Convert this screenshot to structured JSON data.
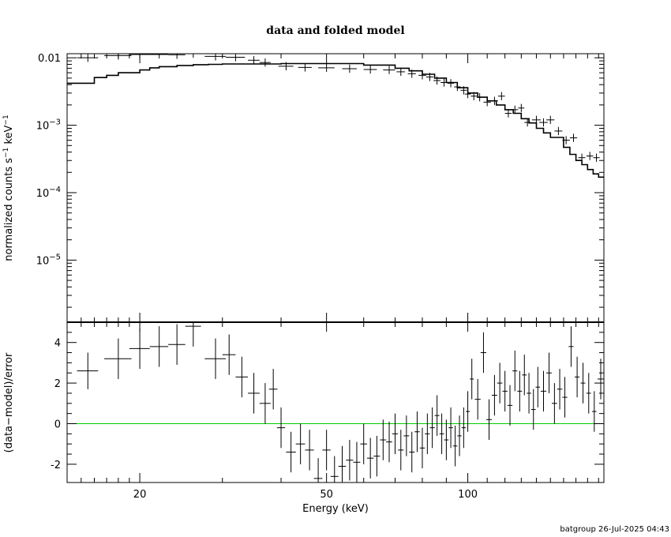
{
  "chart_data": [
    {
      "type": "line",
      "panel": "spectrum",
      "title": "data and folded model",
      "ylabel_parts": [
        "normalized counts s",
        "−1",
        " keV",
        "−1"
      ],
      "yscale": "log",
      "xscale": "log",
      "xlim": [
        14,
        195
      ],
      "ylim": [
        1.2e-06,
        0.0115
      ],
      "ytick_labels": [
        {
          "value": 0.01,
          "label": "0.01"
        },
        {
          "value": 0.001,
          "base": "10",
          "exp": "−3"
        },
        {
          "value": 0.0001,
          "base": "10",
          "exp": "−4"
        },
        {
          "value": 1e-05,
          "base": "10",
          "exp": "−5"
        }
      ],
      "data": {
        "x": [
          15.5,
          18,
          20,
          22,
          24,
          26,
          29,
          32,
          35,
          37,
          41,
          45,
          50,
          56,
          62,
          68,
          72,
          76,
          80,
          83,
          86,
          89,
          92,
          95,
          98,
          100,
          103,
          106,
          110,
          114,
          118,
          122,
          126,
          130,
          134,
          140,
          145,
          150,
          156,
          162,
          168,
          175,
          182,
          188
        ],
        "y": [
          0.01,
          0.0108,
          0.0112,
          0.0112,
          0.0111,
          0.0115,
          0.0105,
          0.0102,
          0.0092,
          0.0085,
          0.0075,
          0.0072,
          0.0071,
          0.0069,
          0.0067,
          0.0066,
          0.0062,
          0.0058,
          0.0055,
          0.0052,
          0.0046,
          0.0043,
          0.0042,
          0.0037,
          0.0033,
          0.0029,
          0.0027,
          0.0026,
          0.0022,
          0.0023,
          0.0027,
          0.0015,
          0.0017,
          0.0018,
          0.0011,
          0.0012,
          0.0011,
          0.0012,
          0.00082,
          0.0006,
          0.00065,
          0.00033,
          0.00035,
          0.00033
        ],
        "xerr": [
          0.8,
          1.2,
          1,
          1,
          1,
          1,
          1.5,
          1.5,
          1,
          1,
          1.5,
          1.5,
          2,
          2,
          2,
          2,
          1.5,
          1.5,
          1.5,
          1.5,
          1.5,
          1.5,
          1.5,
          1.5,
          1.5,
          1.5,
          1.5,
          1.5,
          2,
          2,
          2,
          2,
          2,
          2,
          2,
          3,
          3,
          3,
          3,
          3,
          3,
          3,
          3,
          3
        ],
        "yerr_factor": 1.15
      },
      "model": {
        "x": [
          14,
          16,
          17,
          18,
          20,
          21,
          22,
          24,
          26,
          28,
          30,
          34,
          40,
          50,
          60,
          70,
          75,
          80,
          85,
          90,
          95,
          100,
          105,
          110,
          115,
          120,
          125,
          130,
          135,
          140,
          145,
          150,
          160,
          165,
          170,
          175,
          180,
          185,
          190,
          195
        ],
        "y": [
          0.0042,
          0.0051,
          0.0055,
          0.006,
          0.0066,
          0.0071,
          0.0074,
          0.0077,
          0.0079,
          0.008,
          0.0081,
          0.0081,
          0.0082,
          0.0082,
          0.0078,
          0.007,
          0.0064,
          0.0057,
          0.005,
          0.0043,
          0.0036,
          0.003,
          0.0026,
          0.0023,
          0.002,
          0.0017,
          0.0015,
          0.00125,
          0.00108,
          0.0009,
          0.00077,
          0.00066,
          0.00047,
          0.00037,
          0.0003,
          0.00026,
          0.00022,
          0.00019,
          0.00017,
          0.00016
        ]
      }
    },
    {
      "type": "scatter",
      "panel": "residuals",
      "ylabel": "(data−model)/error",
      "xlabel": "Energy (keV)",
      "xscale": "log",
      "xlim": [
        14,
        195
      ],
      "ylim": [
        -2.9,
        5.0
      ],
      "yticks": [
        -2,
        0,
        2,
        4
      ],
      "xticks": [
        20,
        50,
        100
      ],
      "reference_line": {
        "y": 0,
        "color": "#00cc00"
      },
      "data": {
        "x": [
          15.5,
          18,
          20,
          22,
          24,
          26,
          29,
          31,
          33,
          35,
          37,
          38.5,
          40,
          42,
          44,
          46,
          48,
          50,
          52,
          54,
          56,
          58,
          60,
          62,
          64,
          66,
          68,
          70,
          72,
          74,
          76,
          78,
          80,
          82,
          84,
          86,
          88,
          90,
          92,
          94,
          96,
          98,
          100,
          102,
          105,
          108,
          111,
          114,
          117,
          120,
          123,
          126,
          129,
          132,
          135,
          138,
          141,
          145,
          149,
          153,
          157,
          161,
          166,
          171,
          176,
          181,
          186,
          192
        ],
        "y": [
          2.6,
          3.2,
          3.7,
          3.8,
          3.9,
          4.8,
          3.2,
          3.4,
          2.3,
          1.5,
          1.0,
          1.7,
          -0.2,
          -1.4,
          -1.0,
          -1.3,
          -2.7,
          -1.3,
          -2.6,
          -2.1,
          -1.8,
          -1.9,
          -1.0,
          -1.7,
          -1.6,
          -0.8,
          -0.9,
          -0.5,
          -1.3,
          -0.6,
          -1.4,
          -0.4,
          -1.2,
          -0.5,
          -0.2,
          0.4,
          -0.5,
          -0.8,
          -0.2,
          -1.1,
          -0.6,
          -0.2,
          0.6,
          2.2,
          1.2,
          3.5,
          0.2,
          1.4,
          2.0,
          1.6,
          0.9,
          2.6,
          1.6,
          2.4,
          1.5,
          0.7,
          1.8,
          1.6,
          2.5,
          1.0,
          1.7,
          1.3,
          3.8,
          2.3,
          2.0,
          1.5,
          0.6,
          2.2
        ],
        "xerr": [
          0.8,
          1.2,
          1,
          1,
          1,
          1,
          1.5,
          1,
          1,
          1,
          1,
          0.8,
          0.8,
          1,
          1,
          1,
          1,
          1,
          1,
          1,
          1,
          1,
          1,
          1,
          1,
          1,
          1,
          1,
          1,
          1,
          1,
          1,
          1,
          1,
          1,
          1,
          1,
          1,
          1,
          1,
          1,
          1,
          1,
          1,
          1.5,
          1.5,
          1.5,
          1.5,
          1.5,
          1.5,
          1.5,
          1.5,
          1.5,
          1.5,
          1.5,
          1.5,
          1.5,
          2,
          2,
          2,
          2,
          2,
          2,
          2,
          2,
          2,
          2,
          3
        ],
        "yerr": [
          0.9,
          1,
          1,
          1,
          1,
          1,
          1,
          1,
          1,
          1,
          1,
          1,
          1,
          1,
          1,
          1,
          1,
          1,
          1,
          1,
          1,
          1,
          1,
          1,
          1,
          1,
          1,
          1,
          1,
          1,
          1,
          1,
          1,
          1,
          1,
          1,
          1,
          1,
          1,
          1,
          1,
          1,
          1,
          1,
          1,
          1,
          1,
          1,
          1,
          1,
          1,
          1,
          1,
          1,
          1,
          1,
          1,
          1,
          1,
          1,
          1,
          1,
          1,
          1,
          1,
          1,
          1,
          1
        ]
      }
    }
  ],
  "footer": "batgroup 26-Jul-2025 04:43"
}
